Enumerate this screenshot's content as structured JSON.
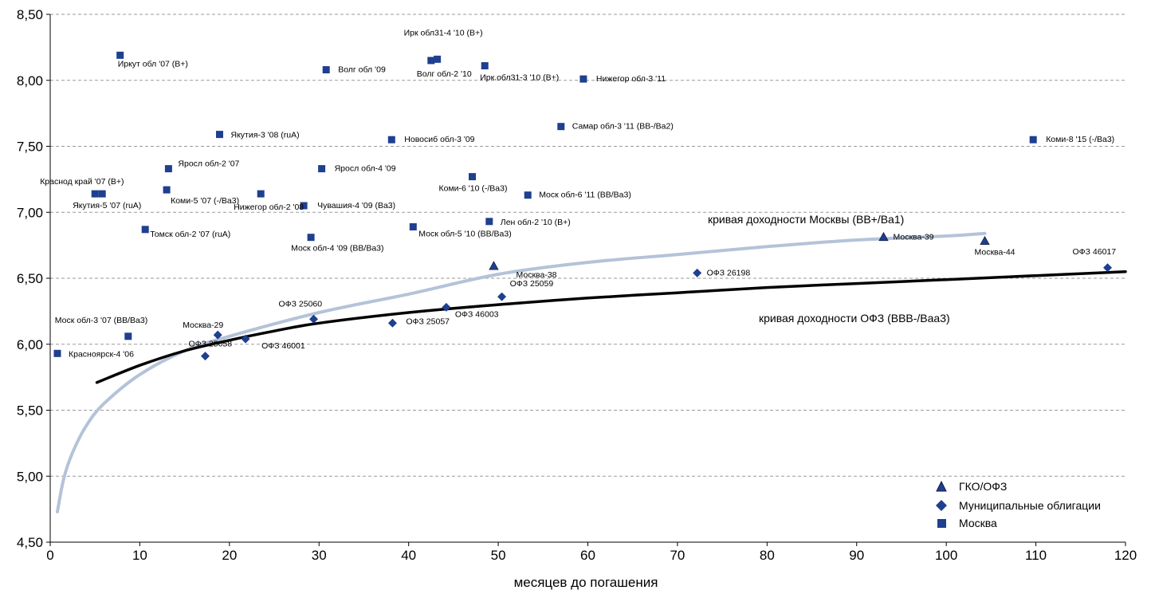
{
  "chart_data": {
    "type": "scatter",
    "title": "",
    "xlabel": "месяцев до погашения",
    "ylabel": "",
    "xlim": [
      0,
      120
    ],
    "ylim": [
      4.5,
      8.5
    ],
    "x_ticks": [
      "0",
      "10",
      "20",
      "30",
      "40",
      "50",
      "60",
      "70",
      "80",
      "90",
      "100",
      "110",
      "120"
    ],
    "y_ticks": [
      "4,50",
      "5,00",
      "5,50",
      "6,00",
      "6,50",
      "7,00",
      "7,50",
      "8,00",
      "8,50"
    ],
    "grid": "horizontal dashed",
    "legend_position": "bottom-right",
    "colors": {
      "points": "#1f3f8f",
      "moscow_curve": "#b4c3d8",
      "ofz_curve": "#000000"
    },
    "series": [
      {
        "name": "ГКО/ОФЗ",
        "marker": "triangle",
        "points": [
          {
            "x": 49.5,
            "y": 6.59,
            "label": "Москва-38"
          },
          {
            "x": 93.0,
            "y": 6.81,
            "label": "Москва-39"
          },
          {
            "x": 104.3,
            "y": 6.78,
            "label": "Москва-44"
          }
        ]
      },
      {
        "name": "Муниципальные облигации",
        "marker": "diamond",
        "points": [
          {
            "x": 17.3,
            "y": 5.91,
            "label": "ОФЗ 25058"
          },
          {
            "x": 18.7,
            "y": 6.07,
            "label": "Москва-29"
          },
          {
            "x": 21.8,
            "y": 6.04,
            "label": "ОФЗ 46001"
          },
          {
            "x": 29.4,
            "y": 6.19,
            "label": "ОФЗ 25060"
          },
          {
            "x": 38.2,
            "y": 6.16,
            "label": "ОФЗ 25057"
          },
          {
            "x": 44.2,
            "y": 6.28,
            "label": "ОФЗ 46003"
          },
          {
            "x": 50.4,
            "y": 6.36,
            "label": "ОФЗ 25059"
          },
          {
            "x": 72.2,
            "y": 6.54,
            "label": "ОФЗ 26198"
          },
          {
            "x": 118.0,
            "y": 6.58,
            "label": "ОФЗ 46017"
          }
        ]
      },
      {
        "name": "Москва",
        "marker": "square",
        "points": [
          {
            "x": 0.8,
            "y": 5.93,
            "label": "Красноярск-4 '06"
          },
          {
            "x": 8.7,
            "y": 6.06,
            "label": "Моск обл-3 '07 (BB/Ba3)"
          },
          {
            "x": 7.8,
            "y": 8.19,
            "label": "Иркут обл '07 (B+)"
          },
          {
            "x": 5.0,
            "y": 7.14,
            "label": "Якутия-5 '07 (ruA)"
          },
          {
            "x": 5.8,
            "y": 7.14,
            "label": "Краснод край '07 (B+)"
          },
          {
            "x": 10.6,
            "y": 6.87,
            "label": "Томск обл-2 '07 (ruA)"
          },
          {
            "x": 13.0,
            "y": 7.17,
            "label": "Коми-5 '07 (-/Ba3)"
          },
          {
            "x": 13.2,
            "y": 7.33,
            "label": "Яросл обл-2 '07"
          },
          {
            "x": 18.9,
            "y": 7.59,
            "label": "Якутия-3 '08 (ruA)"
          },
          {
            "x": 23.5,
            "y": 7.14,
            "label": "Нижегор обл-2 '08"
          },
          {
            "x": 28.3,
            "y": 7.05,
            "label": "Чувашия-4 '09 (Ba3)"
          },
          {
            "x": 29.1,
            "y": 6.81,
            "label": "Моск обл-4 '09 (BB/Ba3)"
          },
          {
            "x": 30.3,
            "y": 7.33,
            "label": "Яросл обл-4 '09"
          },
          {
            "x": 30.8,
            "y": 8.08,
            "label": "Волг обл '09"
          },
          {
            "x": 38.1,
            "y": 7.55,
            "label": "Новосиб обл-3 '09"
          },
          {
            "x": 40.5,
            "y": 6.89,
            "label": "Моск обл-5 '10 (BB/Ba3)"
          },
          {
            "x": 42.5,
            "y": 8.15,
            "label": "Волг обл-2 '10"
          },
          {
            "x": 43.2,
            "y": 8.16,
            "label": "Ирк обл31-4 '10 (B+)"
          },
          {
            "x": 47.1,
            "y": 7.27,
            "label": "Коми-6 '10 (-/Ba3)"
          },
          {
            "x": 48.5,
            "y": 8.11,
            "label": "Ирк.обл31-3 '10 (B+)"
          },
          {
            "x": 49.0,
            "y": 6.93,
            "label": "Лен обл-2 '10 (B+)"
          },
          {
            "x": 53.3,
            "y": 7.13,
            "label": "Моск обл-6 '11 (BB/Ba3)"
          },
          {
            "x": 57.0,
            "y": 7.65,
            "label": "Самар обл-3 '11 (BB-/Ba2)"
          },
          {
            "x": 59.5,
            "y": 8.01,
            "label": "Нижегор обл-3 '11"
          },
          {
            "x": 109.7,
            "y": 7.55,
            "label": "Коми-8 '15 (-/Ba3)"
          }
        ]
      }
    ],
    "curves": [
      {
        "name": "кривая доходности Москвы (BB+/Ba1)",
        "points": [
          [
            0.8,
            4.73
          ],
          [
            1.5,
            4.98
          ],
          [
            2.5,
            5.18
          ],
          [
            4,
            5.38
          ],
          [
            6,
            5.55
          ],
          [
            10,
            5.77
          ],
          [
            15,
            5.95
          ],
          [
            20,
            6.06
          ],
          [
            30,
            6.24
          ],
          [
            40,
            6.38
          ],
          [
            50,
            6.53
          ],
          [
            60,
            6.62
          ],
          [
            70,
            6.68
          ],
          [
            80,
            6.74
          ],
          [
            90,
            6.79
          ],
          [
            100,
            6.82
          ],
          [
            104.3,
            6.84
          ]
        ]
      },
      {
        "name": "кривая доходности ОФЗ (BBB-/Baa3)",
        "points": [
          [
            5.2,
            5.71
          ],
          [
            10,
            5.84
          ],
          [
            15,
            5.95
          ],
          [
            20,
            6.03
          ],
          [
            25,
            6.1
          ],
          [
            30,
            6.16
          ],
          [
            40,
            6.24
          ],
          [
            50,
            6.3
          ],
          [
            60,
            6.35
          ],
          [
            70,
            6.39
          ],
          [
            80,
            6.43
          ],
          [
            90,
            6.46
          ],
          [
            100,
            6.49
          ],
          [
            110,
            6.52
          ],
          [
            120,
            6.55
          ]
        ]
      }
    ],
    "curve_labels": [
      "кривая доходности Москвы (BB+/Ba1)",
      "кривая доходности ОФЗ (BBB-/Baa3)"
    ]
  }
}
